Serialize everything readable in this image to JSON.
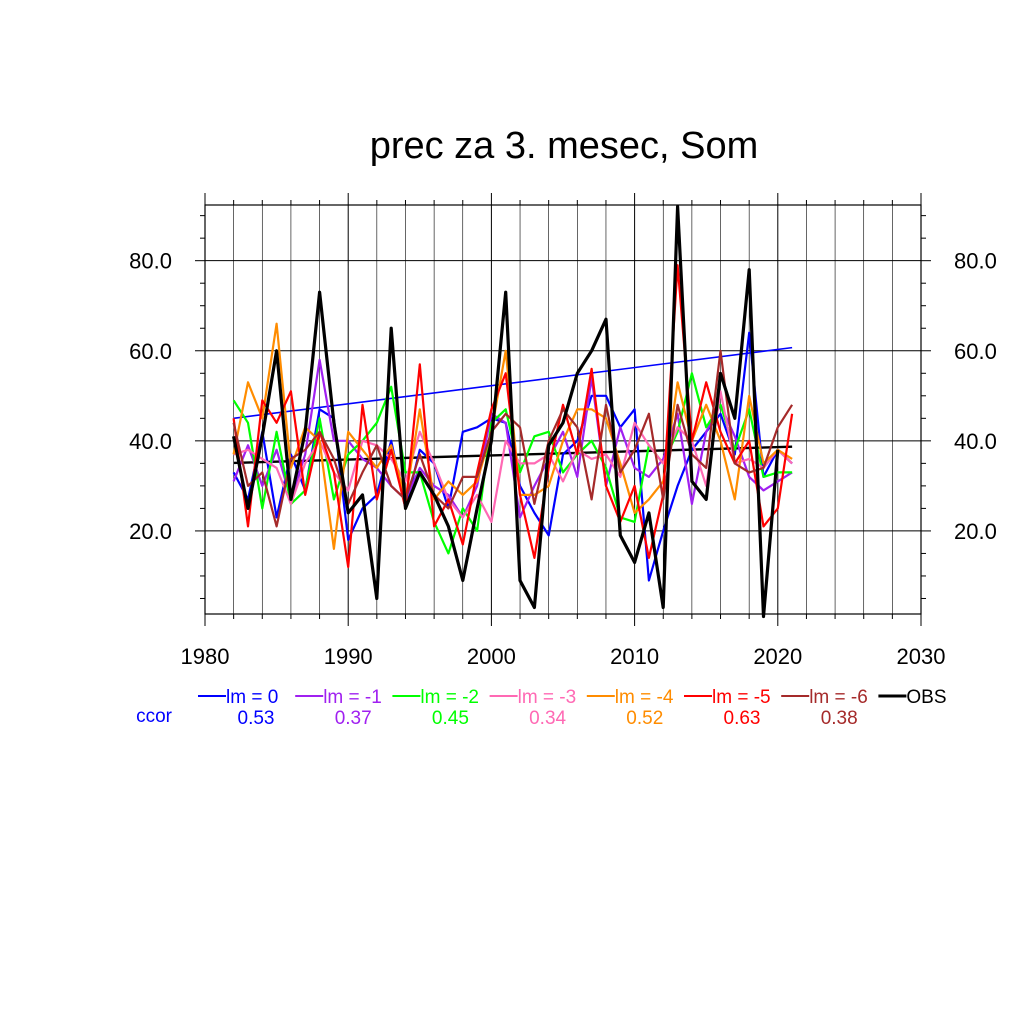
{
  "chart_data": {
    "type": "line",
    "title": "prec za 3. mesec, Som",
    "xlabel": "",
    "ylabel": "",
    "xlim": [
      1980,
      2030
    ],
    "ylim": [
      0,
      92
    ],
    "x_ticks": [
      "1980",
      "1990",
      "2000",
      "2010",
      "2020",
      "2030"
    ],
    "y_ticks": [
      "20.0",
      "40.0",
      "60.0",
      "80.0"
    ],
    "y_tick_values": [
      20,
      40,
      60,
      80
    ],
    "grid": true,
    "legend_position": "below",
    "ccor_label": "ccor",
    "years": [
      1982,
      1983,
      1984,
      1985,
      1986,
      1987,
      1988,
      1989,
      1990,
      1991,
      1992,
      1993,
      1994,
      1995,
      1996,
      1997,
      1998,
      1999,
      2000,
      2001,
      2002,
      2003,
      2004,
      2005,
      2006,
      2007,
      2008,
      2009,
      2010,
      2011,
      2012,
      2013,
      2014,
      2015,
      2016,
      2017,
      2018,
      2019,
      2020,
      2021
    ],
    "series": [
      {
        "name": "lm = 0",
        "ccor": "0.53",
        "color": "#0000ff",
        "trend": [
          45,
          60.7
        ],
        "values": [
          33,
          27,
          42,
          23,
          37,
          29,
          47,
          45,
          18,
          25,
          28,
          40,
          25,
          38,
          35,
          25,
          42,
          43,
          45,
          44,
          30,
          24,
          19,
          37,
          40,
          50,
          50,
          43,
          47,
          9,
          20,
          30,
          38,
          42,
          46,
          37,
          64,
          32,
          38,
          35
        ]
      },
      {
        "name": "lm = -1",
        "ccor": "0.37",
        "color": "#a020f0",
        "trend": null,
        "values": [
          31,
          39,
          30,
          38,
          27,
          37,
          58,
          40,
          40,
          36,
          34,
          30,
          27,
          34,
          30,
          28,
          23,
          30,
          46,
          44,
          23,
          30,
          36,
          42,
          32,
          54,
          30,
          43,
          34,
          32,
          36,
          46,
          26,
          42,
          48,
          41,
          32,
          29,
          31,
          33
        ]
      },
      {
        "name": "lm = -2",
        "ccor": "0.45",
        "color": "#00ff00",
        "trend": null,
        "values": [
          49,
          44,
          25,
          42,
          26,
          29,
          45,
          27,
          37,
          40,
          44,
          52,
          33,
          33,
          22,
          15,
          25,
          20,
          44,
          47,
          33,
          41,
          42,
          33,
          37,
          40,
          34,
          23,
          22,
          39,
          35,
          42,
          55,
          43,
          48,
          38,
          47,
          32,
          33,
          33
        ]
      },
      {
        "name": "lm = -3",
        "ccor": "0.34",
        "color": "#ff69b4",
        "trend": null,
        "values": [
          37,
          38,
          36,
          34,
          26,
          35,
          40,
          33,
          29,
          40,
          39,
          36,
          31,
          42,
          35,
          27,
          23,
          28,
          22,
          40,
          35,
          35,
          37,
          31,
          38,
          36,
          37,
          32,
          44,
          39,
          35,
          43,
          40,
          30,
          51,
          35,
          36,
          34,
          38,
          35
        ]
      },
      {
        "name": "lm = -4",
        "ccor": "0.52",
        "color": "#ff8c00",
        "trend": null,
        "values": [
          37,
          53,
          45,
          66,
          34,
          43,
          40,
          16,
          42,
          38,
          34,
          39,
          27,
          47,
          27,
          31,
          28,
          31,
          42,
          60,
          28,
          28,
          30,
          40,
          47,
          47,
          45,
          35,
          24,
          27,
          31,
          53,
          40,
          48,
          40,
          27,
          50,
          35,
          38,
          36
        ]
      },
      {
        "name": "lm = -5",
        "ccor": "0.63",
        "color": "#ff0000",
        "trend": null,
        "values": [
          45,
          21,
          49,
          44,
          51,
          28,
          42,
          33,
          12,
          48,
          27,
          38,
          25,
          57,
          21,
          27,
          17,
          33,
          47,
          55,
          28,
          14,
          34,
          48,
          37,
          56,
          30,
          22,
          30,
          14,
          28,
          79,
          40,
          53,
          42,
          35,
          40,
          21,
          25,
          46
        ]
      },
      {
        "name": "lm = -6",
        "ccor": "0.38",
        "color": "#a52a2a",
        "trend": null,
        "values": [
          44,
          30,
          33,
          21,
          36,
          38,
          42,
          36,
          26,
          33,
          39,
          30,
          27,
          37,
          28,
          25,
          32,
          32,
          42,
          46,
          43,
          26,
          40,
          47,
          43,
          27,
          48,
          33,
          38,
          46,
          27,
          48,
          37,
          34,
          60,
          35,
          33,
          34,
          43,
          48
        ]
      },
      {
        "name": "OBS",
        "ccor": "",
        "color": "#000000",
        "trend": [
          35.1,
          38.7
        ],
        "values": [
          41,
          25,
          41,
          60,
          27,
          42,
          73,
          44,
          24,
          28,
          5,
          65,
          25,
          33,
          28,
          21,
          9,
          25,
          40,
          73,
          9,
          3,
          39,
          44,
          55,
          60,
          67,
          19,
          13,
          24,
          3,
          92,
          31,
          27,
          55,
          45,
          78,
          1,
          38,
          null
        ]
      }
    ]
  }
}
